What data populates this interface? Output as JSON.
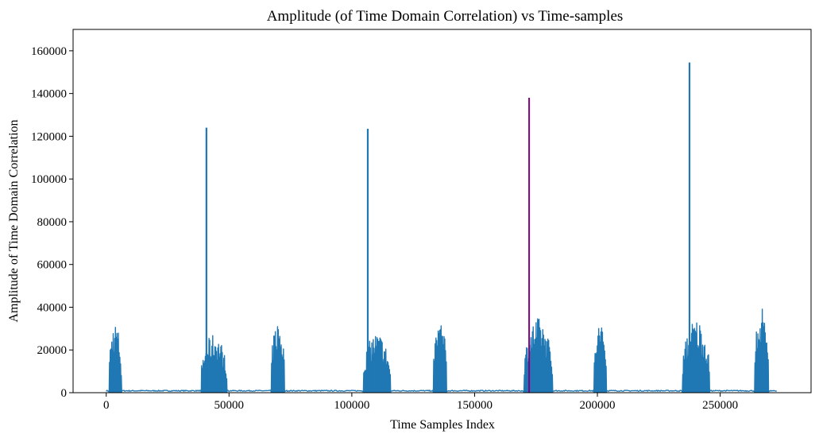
{
  "chart_data": {
    "type": "line",
    "title": "Amplitude (of Time Domain Correlation) vs Time-samples",
    "xlabel": "Time Samples Index",
    "ylabel": "Amplitude of Time Domain Correlation",
    "xlim": [
      -13500,
      287000
    ],
    "ylim": [
      0,
      170000
    ],
    "xticks": [
      0,
      50000,
      100000,
      150000,
      200000,
      250000
    ],
    "yticks": [
      0,
      20000,
      40000,
      60000,
      80000,
      100000,
      120000,
      140000,
      160000
    ],
    "grid": false,
    "legend": "none",
    "baseline_level": 900,
    "x_range": [
      0,
      273000
    ],
    "bursts": [
      {
        "start": 1000,
        "end": 6000,
        "peak": 33500
      },
      {
        "start": 38500,
        "end": 49000,
        "peak": 27500
      },
      {
        "start": 67000,
        "end": 72500,
        "peak": 34000
      },
      {
        "start": 104500,
        "end": 115500,
        "peak": 28000
      },
      {
        "start": 133000,
        "end": 138500,
        "peak": 34000
      },
      {
        "start": 170000,
        "end": 181500,
        "peak": 35000
      },
      {
        "start": 198500,
        "end": 203500,
        "peak": 33700
      },
      {
        "start": 234500,
        "end": 245500,
        "peak": 34500
      },
      {
        "start": 264000,
        "end": 269500,
        "peak": 41800
      }
    ],
    "spikes": [
      {
        "x": 40800,
        "y": 124000
      },
      {
        "x": 106500,
        "y": 123500
      },
      {
        "x": 237500,
        "y": 154500
      }
    ],
    "highlight": {
      "x": 172200,
      "y": 138000
    },
    "series": [
      {
        "color": "#1f77b4"
      },
      {
        "color": "#800080"
      }
    ]
  }
}
